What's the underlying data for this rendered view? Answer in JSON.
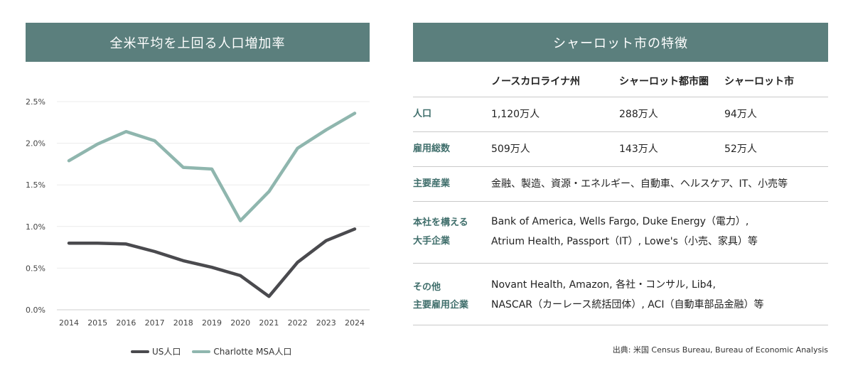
{
  "left_panel": {
    "title": "全米平均を上回る人口増加率"
  },
  "chart_data": {
    "type": "line",
    "title": "",
    "xlabel": "",
    "ylabel": "",
    "x": [
      "2014",
      "2015",
      "2016",
      "2017",
      "2018",
      "2019",
      "2020",
      "2021",
      "2022",
      "2023",
      "2024"
    ],
    "ylim": [
      0,
      2.5
    ],
    "yticks": [
      "0.0%",
      "0.5%",
      "1.0%",
      "1.5%",
      "2.0%",
      "2.5%"
    ],
    "grid": true,
    "legend_position": "bottom",
    "series": [
      {
        "name": "US人口",
        "color": "#4a4a4e",
        "values": [
          0.8,
          0.8,
          0.79,
          0.7,
          0.59,
          0.51,
          0.41,
          0.16,
          0.57,
          0.83,
          0.97
        ]
      },
      {
        "name": "Charlotte MSA人口",
        "color": "#8fb6ae",
        "values": [
          1.79,
          1.99,
          2.14,
          2.03,
          1.71,
          1.69,
          1.07,
          1.42,
          1.94,
          2.16,
          2.36
        ]
      }
    ]
  },
  "right_panel": {
    "title": "シャーロット市の特徴",
    "headers": [
      "ノースカロライナ州",
      "シャーロット都市圏",
      "シャーロット市"
    ],
    "rows": [
      {
        "label": "人口",
        "values": [
          "1,120万人",
          "288万人",
          "94万人"
        ]
      },
      {
        "label": "雇用総数",
        "values": [
          "509万人",
          "143万人",
          "52万人"
        ]
      },
      {
        "label": "主要産業",
        "text": "金融、製造、資源・エネルギー、自動車、ヘルスケア、IT、小売等"
      },
      {
        "label_lines": [
          "本社を構える",
          "大手企業"
        ],
        "text_lines": [
          "Bank of America, Wells Fargo, Duke Energy（電力）,",
          "Atrium Health, Passport（IT）, Lowe's（小売、家具）等"
        ]
      },
      {
        "label_lines": [
          "その他",
          "主要雇用企業"
        ],
        "text_lines": [
          "Novant Health, Amazon, 各社・コンサル, Lib4,",
          "NASCAR（カーレース統括団体）, ACI（自動車部品金融）等"
        ]
      }
    ],
    "source": "出典: 米国 Census Bureau, Bureau of Economic Analysis"
  }
}
